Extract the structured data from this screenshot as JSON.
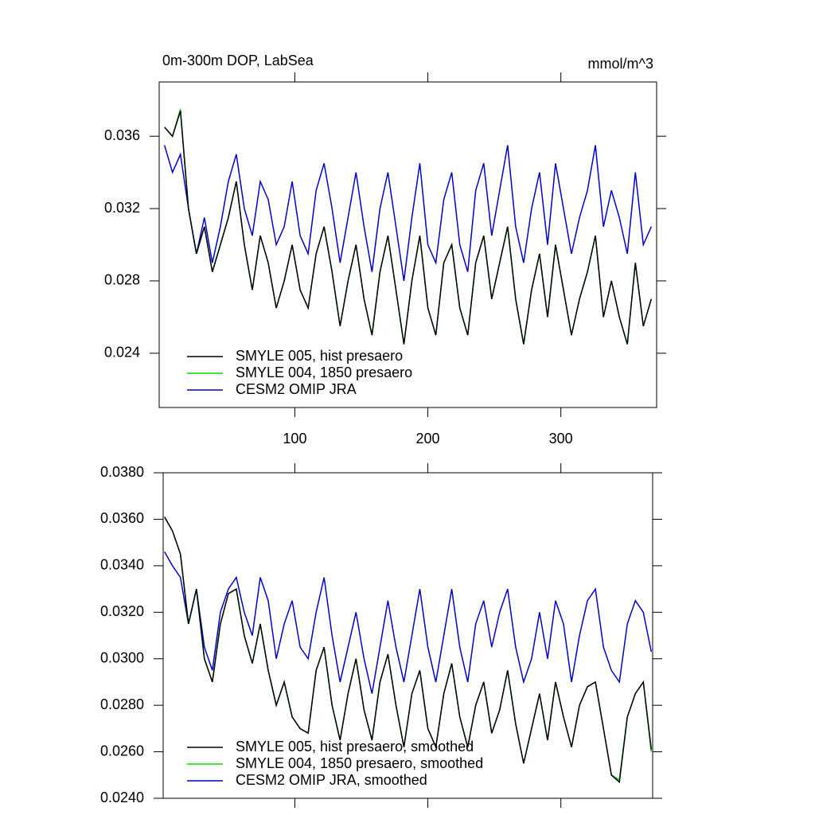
{
  "chart_data": [
    {
      "type": "line",
      "title": "0m-300m DOP, LabSea",
      "units": "mmol/m^3",
      "x": [
        2,
        8,
        14,
        20,
        26,
        32,
        38,
        44,
        50,
        56,
        62,
        68,
        74,
        80,
        86,
        92,
        98,
        104,
        110,
        116,
        122,
        128,
        134,
        140,
        146,
        152,
        158,
        164,
        170,
        176,
        182,
        188,
        194,
        200,
        206,
        212,
        218,
        224,
        230,
        236,
        242,
        248,
        254,
        260,
        266,
        272,
        278,
        284,
        290,
        296,
        302,
        308,
        314,
        320,
        326,
        332,
        338,
        344,
        350,
        356,
        362,
        368
      ],
      "xlim": [
        -2,
        372
      ],
      "xticks": [
        100,
        200,
        300
      ],
      "xtick_labels": true,
      "ylim": [
        0.021,
        0.039
      ],
      "yticks": [
        0.024,
        0.028,
        0.032,
        0.036
      ],
      "legend": "lower left",
      "series": [
        {
          "name": "SMYLE 005, hist presaero",
          "color": "#000000",
          "values": [
            0.0365,
            0.036,
            0.0374,
            0.032,
            0.0295,
            0.031,
            0.0285,
            0.03,
            0.0315,
            0.0335,
            0.03,
            0.0275,
            0.0305,
            0.029,
            0.0265,
            0.028,
            0.03,
            0.0275,
            0.0265,
            0.0295,
            0.031,
            0.0285,
            0.0255,
            0.028,
            0.03,
            0.027,
            0.025,
            0.0285,
            0.0305,
            0.0275,
            0.0245,
            0.028,
            0.0305,
            0.0265,
            0.025,
            0.029,
            0.03,
            0.0265,
            0.025,
            0.029,
            0.0305,
            0.027,
            0.029,
            0.031,
            0.027,
            0.0245,
            0.0275,
            0.0295,
            0.026,
            0.03,
            0.0275,
            0.025,
            0.027,
            0.0285,
            0.0305,
            0.026,
            0.028,
            0.026,
            0.0245,
            0.029,
            0.0255,
            0.027
          ]
        },
        {
          "name": "SMYLE 004, 1850 presaero",
          "color": "#00dd00",
          "values": [
            0.0365,
            0.036,
            0.0375,
            0.032,
            0.0295,
            0.031,
            0.0285,
            0.03,
            0.0315,
            0.0335,
            0.03,
            0.0275,
            0.0305,
            0.029,
            0.0265,
            0.028,
            0.03,
            0.0275,
            0.0265,
            0.0295,
            0.031,
            0.0285,
            0.0255,
            0.028,
            0.03,
            0.027,
            0.025,
            0.0285,
            0.0305,
            0.0275,
            0.0245,
            0.028,
            0.0305,
            0.0265,
            0.025,
            0.029,
            0.03,
            0.0265,
            0.025,
            0.029,
            0.0305,
            0.027,
            0.029,
            0.031,
            0.027,
            0.0245,
            0.0275,
            0.0295,
            0.026,
            0.03,
            0.0275,
            0.025,
            0.027,
            0.0285,
            0.0305,
            0.026,
            0.028,
            0.026,
            0.0245,
            0.029,
            0.0255,
            0.027
          ]
        },
        {
          "name": "CESM2 OMIP JRA",
          "color": "#0000cc",
          "values": [
            0.0355,
            0.034,
            0.035,
            0.032,
            0.0295,
            0.0315,
            0.029,
            0.031,
            0.0335,
            0.035,
            0.032,
            0.0305,
            0.0335,
            0.0325,
            0.03,
            0.031,
            0.0335,
            0.0305,
            0.0295,
            0.033,
            0.0345,
            0.032,
            0.029,
            0.0315,
            0.034,
            0.031,
            0.0285,
            0.032,
            0.034,
            0.031,
            0.028,
            0.0315,
            0.0345,
            0.03,
            0.029,
            0.0325,
            0.034,
            0.03,
            0.0285,
            0.033,
            0.0345,
            0.0305,
            0.033,
            0.0355,
            0.031,
            0.029,
            0.032,
            0.034,
            0.03,
            0.0345,
            0.032,
            0.0295,
            0.0315,
            0.033,
            0.0355,
            0.031,
            0.033,
            0.0315,
            0.0295,
            0.034,
            0.03,
            0.031
          ]
        }
      ]
    },
    {
      "type": "line",
      "x": [
        2,
        8,
        14,
        20,
        26,
        32,
        38,
        44,
        50,
        56,
        62,
        68,
        74,
        80,
        86,
        92,
        98,
        104,
        110,
        116,
        122,
        128,
        134,
        140,
        146,
        152,
        158,
        164,
        170,
        176,
        182,
        188,
        194,
        200,
        206,
        212,
        218,
        224,
        230,
        236,
        242,
        248,
        254,
        260,
        266,
        272,
        278,
        284,
        290,
        296,
        302,
        308,
        314,
        320,
        326,
        332,
        338,
        344,
        350,
        356,
        362,
        368
      ],
      "xlim": [
        1,
        369
      ],
      "xticks": [
        100,
        200,
        300
      ],
      "xtick_labels": false,
      "ylim": [
        0.024,
        0.038
      ],
      "yticks": [
        {
          "value": 0.024,
          "label": "0.0240"
        },
        {
          "value": 0.026,
          "label": "0.0260"
        },
        {
          "value": 0.028,
          "label": "0.0280"
        },
        {
          "value": 0.03,
          "label": "0.0300"
        },
        {
          "value": 0.032,
          "label": "0.0320"
        },
        {
          "value": 0.034,
          "label": "0.0340"
        },
        {
          "value": 0.036,
          "label": "0.0360"
        },
        {
          "value": 0.038,
          "label": "0.0380"
        }
      ],
      "legend": "lower left",
      "series": [
        {
          "name": "SMYLE 005, hist presaero, smoothed",
          "color": "#000000",
          "values": [
            0.0361,
            0.0355,
            0.0345,
            0.0315,
            0.033,
            0.03,
            0.029,
            0.0315,
            0.0328,
            0.033,
            0.031,
            0.0298,
            0.0315,
            0.0295,
            0.028,
            0.029,
            0.0275,
            0.027,
            0.0268,
            0.0295,
            0.0305,
            0.028,
            0.0265,
            0.0285,
            0.03,
            0.0278,
            0.0265,
            0.029,
            0.0302,
            0.028,
            0.0262,
            0.0285,
            0.0295,
            0.027,
            0.0262,
            0.0285,
            0.0298,
            0.0275,
            0.0262,
            0.028,
            0.029,
            0.0268,
            0.0278,
            0.0295,
            0.0272,
            0.0255,
            0.027,
            0.0285,
            0.0265,
            0.029,
            0.0275,
            0.0262,
            0.028,
            0.0288,
            0.029,
            0.027,
            0.025,
            0.0247,
            0.0275,
            0.0285,
            0.029,
            0.0261
          ]
        },
        {
          "name": "SMYLE 004, 1850 presaero, smoothed",
          "color": "#00dd00",
          "values": [
            0.0361,
            0.0355,
            0.0345,
            0.0315,
            0.033,
            0.03,
            0.029,
            0.0315,
            0.0328,
            0.033,
            0.031,
            0.0298,
            0.0315,
            0.0295,
            0.028,
            0.029,
            0.0275,
            0.027,
            0.0268,
            0.0295,
            0.0305,
            0.028,
            0.0265,
            0.0285,
            0.03,
            0.0278,
            0.0265,
            0.029,
            0.0302,
            0.028,
            0.0262,
            0.0285,
            0.0295,
            0.027,
            0.0262,
            0.0285,
            0.0298,
            0.0275,
            0.0262,
            0.028,
            0.029,
            0.0268,
            0.0278,
            0.0295,
            0.0272,
            0.0255,
            0.027,
            0.0285,
            0.0265,
            0.029,
            0.0275,
            0.0262,
            0.028,
            0.0288,
            0.029,
            0.027,
            0.025,
            0.0248,
            0.0275,
            0.0285,
            0.029,
            0.026
          ]
        },
        {
          "name": "CESM2 OMIP JRA, smoothed",
          "color": "#0000cc",
          "values": [
            0.0346,
            0.034,
            0.0335,
            0.0315,
            0.033,
            0.0305,
            0.0295,
            0.032,
            0.033,
            0.0335,
            0.032,
            0.031,
            0.0335,
            0.0325,
            0.03,
            0.0315,
            0.0325,
            0.0305,
            0.03,
            0.032,
            0.0335,
            0.031,
            0.029,
            0.0305,
            0.032,
            0.03,
            0.0285,
            0.0305,
            0.0325,
            0.0305,
            0.029,
            0.031,
            0.033,
            0.0305,
            0.029,
            0.031,
            0.033,
            0.0305,
            0.029,
            0.0315,
            0.0325,
            0.0305,
            0.032,
            0.033,
            0.0305,
            0.029,
            0.03,
            0.032,
            0.03,
            0.0325,
            0.0315,
            0.029,
            0.031,
            0.0325,
            0.033,
            0.0305,
            0.0295,
            0.029,
            0.0315,
            0.0325,
            0.032,
            0.0303
          ]
        }
      ]
    }
  ]
}
